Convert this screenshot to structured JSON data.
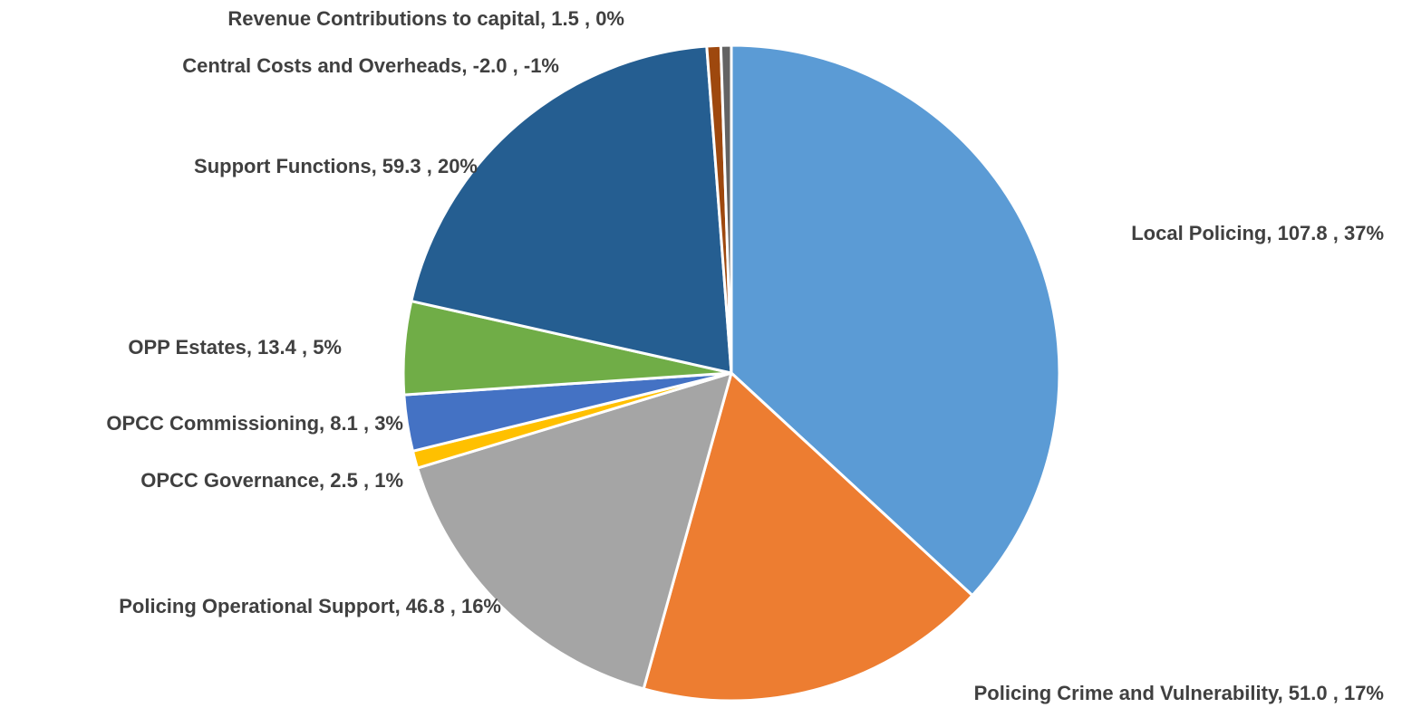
{
  "chart_data": {
    "type": "pie",
    "title": "",
    "slices": [
      {
        "name": "Local Policing",
        "value": 107.8,
        "label": "Local Policing,  107.8 , 37%",
        "color": "#5B9BD5"
      },
      {
        "name": "Policing Crime and Vulnerability",
        "value": 51.0,
        "label": "Policing Crime and Vulnerability,  51.0 , 17%",
        "color": "#ED7D31"
      },
      {
        "name": "Policing Operational Support",
        "value": 46.8,
        "label": "Policing Operational Support,  46.8 , 16%",
        "color": "#A5A5A5"
      },
      {
        "name": "OPCC Governance",
        "value": 2.5,
        "label": "OPCC Governance,  2.5 , 1%",
        "color": "#FFC000"
      },
      {
        "name": "OPCC Commissioning",
        "value": 8.1,
        "label": "OPCC Commissioning,  8.1 , 3%",
        "color": "#4472C4"
      },
      {
        "name": "OPP Estates",
        "value": 13.4,
        "label": "OPP Estates,  13.4 , 5%",
        "color": "#70AD47"
      },
      {
        "name": "Support Functions",
        "value": 59.3,
        "label": "Support Functions,  59.3 , 20%",
        "color": "#255E91"
      },
      {
        "name": "Central Costs and Overheads",
        "value": -2.0,
        "label": "Central Costs and Overheads, -2.0 , -1%",
        "color": "#9E480E"
      },
      {
        "name": "Revenue Contributions to capital",
        "value": 1.5,
        "label": "Revenue Contributions to capital,  1.5 , 0%",
        "color": "#636363"
      }
    ],
    "legend": "none"
  }
}
